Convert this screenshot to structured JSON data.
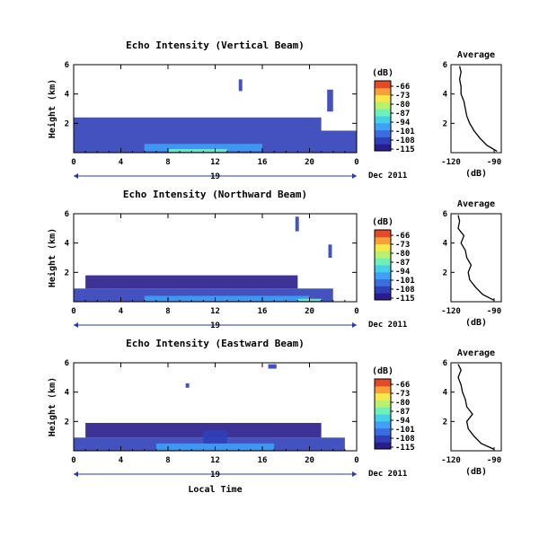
{
  "figure": {
    "xlabel": "Local Time",
    "date_label": "19",
    "month_label": "Dec 2011",
    "colorbar_unit": "(dB)",
    "avg_title": "Average",
    "avg_xlabel": "(dB)"
  },
  "colors": {
    "colormap": [
      "#2a1c8c",
      "#2f3fb8",
      "#3a6ee0",
      "#3fa0f5",
      "#45d0e8",
      "#6ff0b8",
      "#b8f070",
      "#f4e84a",
      "#f6a038",
      "#e44a2a"
    ],
    "axis": "#000000",
    "baseline_arrow": "#2a3aa0"
  },
  "chart_data": [
    {
      "type": "heatmap",
      "title": "Echo Intensity (Vertical Beam)",
      "xlabel": "Local Time",
      "ylabel": "Height (km)",
      "xlim": [
        0,
        24
      ],
      "ylim": [
        0,
        6
      ],
      "xticks": [
        "0",
        "4",
        "8",
        "12",
        "16",
        "20",
        "0"
      ],
      "yticks": [
        "2",
        "4",
        "6"
      ],
      "colorbar": {
        "label": "(dB)",
        "min": -115,
        "max": -66,
        "ticks": [
          "-66",
          "-73",
          "-80",
          "-87",
          "-94",
          "-101",
          "-108",
          "-115"
        ]
      },
      "echo_regions": [
        {
          "x0": 0,
          "x1": 24,
          "y0": 0,
          "y1": 1.5,
          "db": -106
        },
        {
          "x0": 0,
          "x1": 21,
          "y0": 1.5,
          "y1": 2.4,
          "db": -110
        },
        {
          "x0": 6,
          "x1": 16,
          "y0": 0.1,
          "y1": 0.6,
          "db": -97
        },
        {
          "x0": 8,
          "x1": 13,
          "y0": 0.05,
          "y1": 0.25,
          "db": -90
        },
        {
          "x0": 14,
          "x1": 14.3,
          "y0": 4.2,
          "y1": 5.0,
          "db": -110
        },
        {
          "x0": 21.5,
          "x1": 22,
          "y0": 2.8,
          "y1": 4.3,
          "db": -108
        }
      ],
      "average_profile": {
        "title": "Average",
        "xlabel": "(dB)",
        "xlim": [
          -120,
          -85
        ],
        "xticks": [
          "-120",
          "-90"
        ],
        "ylim": [
          0,
          6
        ],
        "yticks": [
          "2",
          "4",
          "6"
        ],
        "height_km": [
          0.1,
          0.5,
          1.0,
          1.5,
          2.0,
          2.5,
          3.0,
          3.5,
          4.0,
          4.5,
          5.0,
          5.5,
          5.9
        ],
        "db": [
          -88,
          -95,
          -100,
          -104,
          -107,
          -109,
          -110,
          -111,
          -113,
          -113,
          -114,
          -113,
          -114
        ]
      }
    },
    {
      "type": "heatmap",
      "title": "Echo Intensity (Northward Beam)",
      "xlabel": "Local Time",
      "ylabel": "Height (km)",
      "xlim": [
        0,
        24
      ],
      "ylim": [
        0,
        6
      ],
      "xticks": [
        "0",
        "4",
        "8",
        "12",
        "16",
        "20",
        "0"
      ],
      "yticks": [
        "2",
        "4",
        "6"
      ],
      "colorbar": {
        "label": "(dB)",
        "min": -115,
        "max": -66,
        "ticks": [
          "-66",
          "-73",
          "-80",
          "-87",
          "-94",
          "-101",
          "-108",
          "-115"
        ]
      },
      "echo_regions": [
        {
          "x0": 0,
          "x1": 22,
          "y0": 0,
          "y1": 0.9,
          "db": -110
        },
        {
          "x0": 1,
          "x1": 19,
          "y0": 0.9,
          "y1": 1.8,
          "db": -112
        },
        {
          "x0": 6,
          "x1": 20,
          "y0": 0.05,
          "y1": 0.4,
          "db": -97
        },
        {
          "x0": 19,
          "x1": 21,
          "y0": 0.05,
          "y1": 0.2,
          "db": -90
        },
        {
          "x0": 18.8,
          "x1": 19.1,
          "y0": 4.8,
          "y1": 5.8,
          "db": -108
        },
        {
          "x0": 21.6,
          "x1": 21.9,
          "y0": 3.0,
          "y1": 3.9,
          "db": -108
        }
      ],
      "average_profile": {
        "title": "Average",
        "xlabel": "(dB)",
        "xlim": [
          -120,
          -85
        ],
        "xticks": [
          "-120",
          "-90"
        ],
        "ylim": [
          0,
          6
        ],
        "yticks": [
          "2",
          "4",
          "6"
        ],
        "height_km": [
          0.1,
          0.5,
          1.0,
          1.5,
          2.0,
          2.5,
          3.0,
          3.5,
          4.0,
          4.5,
          5.0,
          5.5,
          5.9
        ],
        "db": [
          -90,
          -98,
          -103,
          -107,
          -108,
          -106,
          -109,
          -110,
          -113,
          -111,
          -115,
          -114,
          -115
        ]
      }
    },
    {
      "type": "heatmap",
      "title": "Echo Intensity (Eastward Beam)",
      "xlabel": "Local Time",
      "ylabel": "Height (km)",
      "xlim": [
        0,
        24
      ],
      "ylim": [
        0,
        6
      ],
      "xticks": [
        "0",
        "4",
        "8",
        "12",
        "16",
        "20",
        "0"
      ],
      "yticks": [
        "2",
        "4",
        "6"
      ],
      "colorbar": {
        "label": "(dB)",
        "min": -115,
        "max": -66,
        "ticks": [
          "-66",
          "-73",
          "-80",
          "-87",
          "-94",
          "-101",
          "-108",
          "-115"
        ]
      },
      "echo_regions": [
        {
          "x0": 0,
          "x1": 23,
          "y0": 0,
          "y1": 0.9,
          "db": -110
        },
        {
          "x0": 1,
          "x1": 21,
          "y0": 0.9,
          "y1": 1.9,
          "db": -112
        },
        {
          "x0": 7,
          "x1": 17,
          "y0": 0.05,
          "y1": 0.5,
          "db": -96
        },
        {
          "x0": 11,
          "x1": 13,
          "y0": 0.5,
          "y1": 1.4,
          "db": -106
        },
        {
          "x0": 16.5,
          "x1": 17.2,
          "y0": 5.6,
          "y1": 5.9,
          "db": -108
        },
        {
          "x0": 9.5,
          "x1": 9.8,
          "y0": 4.3,
          "y1": 4.6,
          "db": -110
        }
      ],
      "average_profile": {
        "title": "Average",
        "xlabel": "(dB)",
        "xlim": [
          -120,
          -85
        ],
        "xticks": [
          "-120",
          "-90"
        ],
        "ylim": [
          0,
          6
        ],
        "yticks": [
          "2",
          "4",
          "6"
        ],
        "height_km": [
          0.1,
          0.5,
          1.0,
          1.5,
          2.0,
          2.5,
          3.0,
          3.5,
          4.0,
          4.5,
          5.0,
          5.5,
          5.9
        ],
        "db": [
          -90,
          -99,
          -104,
          -108,
          -109,
          -105,
          -109,
          -110,
          -112,
          -113,
          -115,
          -113,
          -115
        ]
      }
    }
  ]
}
